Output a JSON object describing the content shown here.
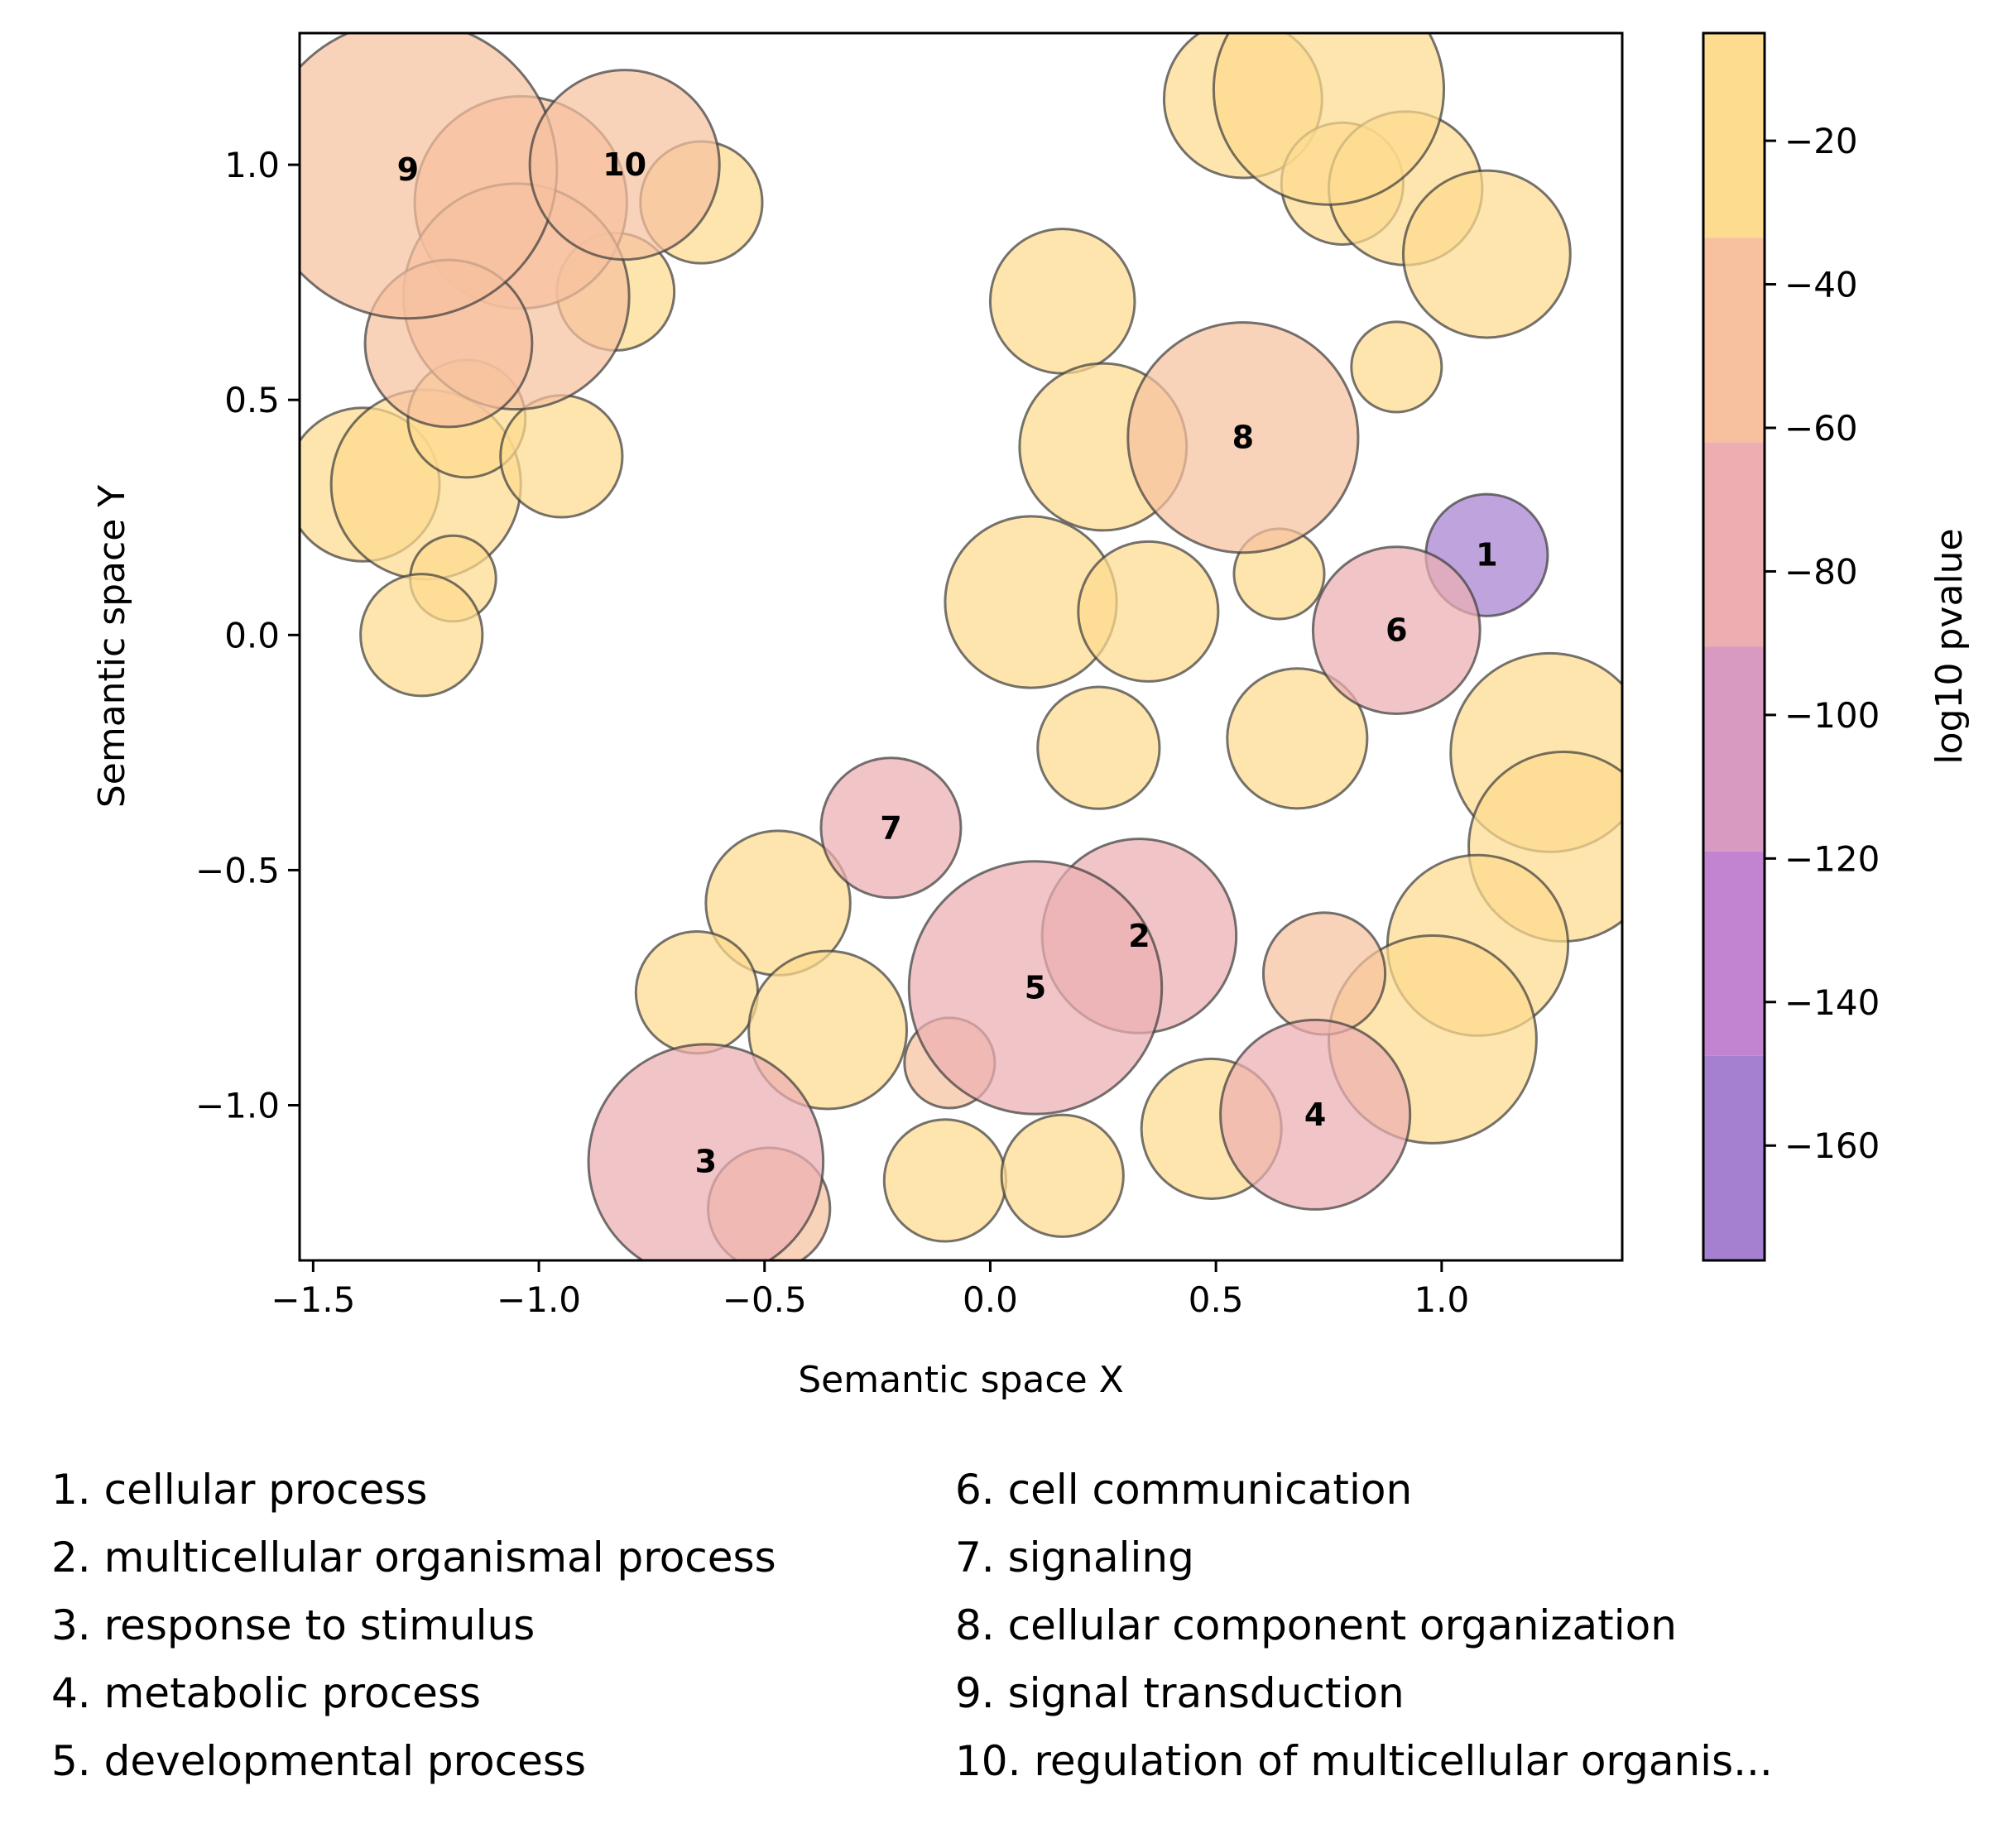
{
  "chart_data": {
    "type": "scatter",
    "xlabel": "Semantic space X",
    "ylabel": "Semantic space Y",
    "xlim": [
      -1.53,
      1.4
    ],
    "ylim": [
      -1.33,
      1.28
    ],
    "xticks": [
      {
        "value": -1.5,
        "label": "−1.5"
      },
      {
        "value": -1.0,
        "label": "−1.0"
      },
      {
        "value": -0.5,
        "label": "−0.5"
      },
      {
        "value": 0.0,
        "label": "0.0"
      },
      {
        "value": 0.5,
        "label": "0.5"
      },
      {
        "value": 1.0,
        "label": "1.0"
      }
    ],
    "yticks": [
      {
        "value": -1.0,
        "label": "−1.0"
      },
      {
        "value": -0.5,
        "label": "−0.5"
      },
      {
        "value": 0.0,
        "label": "0.0"
      },
      {
        "value": 0.5,
        "label": "0.5"
      },
      {
        "value": 1.0,
        "label": "1.0"
      }
    ],
    "colorbar": {
      "label": "log10 pvalue",
      "range": [
        -176,
        -5
      ],
      "bands": [
        {
          "from": -176,
          "to": -147.5,
          "color": "#a680d0"
        },
        {
          "from": -147.5,
          "to": -119,
          "color": "#c283d0"
        },
        {
          "from": -119,
          "to": -90.5,
          "color": "#d99ac2"
        },
        {
          "from": -90.5,
          "to": -62,
          "color": "#ecaeb1"
        },
        {
          "from": -62,
          "to": -33.5,
          "color": "#f7c1a0"
        },
        {
          "from": -33.5,
          "to": -5,
          "color": "#fddb8f"
        }
      ],
      "ticks": [
        {
          "value": -20,
          "label": "−20"
        },
        {
          "value": -40,
          "label": "−40"
        },
        {
          "value": -60,
          "label": "−60"
        },
        {
          "value": -80,
          "label": "−80"
        },
        {
          "value": -100,
          "label": "−100"
        },
        {
          "value": -120,
          "label": "−120"
        },
        {
          "value": -140,
          "label": "−140"
        },
        {
          "value": -160,
          "label": "−160"
        }
      ]
    },
    "points": [
      {
        "x": -1.39,
        "y": 0.32,
        "r": 0.17,
        "logp": -10
      },
      {
        "x": -1.25,
        "y": 0.32,
        "r": 0.21,
        "logp": -10
      },
      {
        "x": -1.16,
        "y": 0.46,
        "r": 0.13,
        "logp": -10
      },
      {
        "x": -0.95,
        "y": 0.38,
        "r": 0.135,
        "logp": -10
      },
      {
        "x": -1.19,
        "y": 0.12,
        "r": 0.095,
        "logp": -10
      },
      {
        "x": -1.26,
        "y": 0.0,
        "r": 0.135,
        "logp": -10
      },
      {
        "x": -0.83,
        "y": 0.73,
        "r": 0.13,
        "logp": -10
      },
      {
        "x": -0.64,
        "y": 0.92,
        "r": 0.135,
        "logp": -10
      },
      {
        "x": -1.04,
        "y": 0.92,
        "r": 0.235,
        "logp": -50
      },
      {
        "x": -1.05,
        "y": 0.72,
        "r": 0.25,
        "logp": -50
      },
      {
        "x": -1.2,
        "y": 0.62,
        "r": 0.185,
        "logp": -50
      },
      {
        "x": -1.29,
        "y": 0.99,
        "r": 0.33,
        "logp": -45,
        "label": "9"
      },
      {
        "x": -0.81,
        "y": 1.0,
        "r": 0.21,
        "logp": -50,
        "label": "10"
      },
      {
        "x": 0.16,
        "y": 0.71,
        "r": 0.16,
        "logp": -10
      },
      {
        "x": 0.25,
        "y": 0.4,
        "r": 0.185,
        "logp": -10
      },
      {
        "x": 0.09,
        "y": 0.07,
        "r": 0.19,
        "logp": -10
      },
      {
        "x": 0.35,
        "y": 0.05,
        "r": 0.155,
        "logp": -10
      },
      {
        "x": 0.24,
        "y": -0.24,
        "r": 0.135,
        "logp": -10
      },
      {
        "x": 0.64,
        "y": 0.13,
        "r": 0.1,
        "logp": -10
      },
      {
        "x": 0.68,
        "y": -0.22,
        "r": 0.155,
        "logp": -10
      },
      {
        "x": 0.9,
        "y": 0.57,
        "r": 0.1,
        "logp": -10
      },
      {
        "x": 0.56,
        "y": 1.14,
        "r": 0.175,
        "logp": -10
      },
      {
        "x": 0.78,
        "y": 0.96,
        "r": 0.135,
        "logp": -10
      },
      {
        "x": 0.92,
        "y": 0.95,
        "r": 0.17,
        "logp": -10
      },
      {
        "x": 1.1,
        "y": 0.81,
        "r": 0.185,
        "logp": -10
      },
      {
        "x": 0.75,
        "y": 1.16,
        "r": 0.255,
        "logp": -10
      },
      {
        "x": 0.56,
        "y": 0.42,
        "r": 0.255,
        "logp": -45,
        "label": "8"
      },
      {
        "x": 1.1,
        "y": 0.17,
        "r": 0.135,
        "logp": -170,
        "label": "1"
      },
      {
        "x": 0.9,
        "y": 0.01,
        "r": 0.185,
        "logp": -80,
        "label": "6"
      },
      {
        "x": 1.24,
        "y": -0.25,
        "r": 0.22,
        "logp": -10
      },
      {
        "x": 1.27,
        "y": -0.45,
        "r": 0.21,
        "logp": -10
      },
      {
        "x": 1.08,
        "y": -0.66,
        "r": 0.2,
        "logp": -10
      },
      {
        "x": 0.98,
        "y": -0.86,
        "r": 0.23,
        "logp": -10
      },
      {
        "x": 0.74,
        "y": -0.72,
        "r": 0.135,
        "logp": -50
      },
      {
        "x": 0.49,
        "y": -1.05,
        "r": 0.155,
        "logp": -10
      },
      {
        "x": 0.72,
        "y": -1.02,
        "r": 0.21,
        "logp": -80,
        "label": "4"
      },
      {
        "x": -0.47,
        "y": -0.57,
        "r": 0.16,
        "logp": -10
      },
      {
        "x": -0.65,
        "y": -0.76,
        "r": 0.135,
        "logp": -10
      },
      {
        "x": -0.36,
        "y": -0.84,
        "r": 0.175,
        "logp": -10
      },
      {
        "x": -0.09,
        "y": -0.91,
        "r": 0.1,
        "logp": -50
      },
      {
        "x": -0.1,
        "y": -1.16,
        "r": 0.135,
        "logp": -10
      },
      {
        "x": 0.16,
        "y": -1.15,
        "r": 0.135,
        "logp": -10
      },
      {
        "x": -0.22,
        "y": -0.41,
        "r": 0.155,
        "logp": -80,
        "label": "7"
      },
      {
        "x": 0.33,
        "y": -0.64,
        "r": 0.215,
        "logp": -80,
        "label": "2"
      },
      {
        "x": 0.1,
        "y": -0.75,
        "r": 0.28,
        "logp": -80,
        "label": "5"
      },
      {
        "x": -0.63,
        "y": -1.12,
        "r": 0.26,
        "logp": -80,
        "label": "3"
      },
      {
        "x": -0.49,
        "y": -1.22,
        "r": 0.135,
        "logp": -50
      }
    ]
  },
  "legend": {
    "items": [
      "1. cellular process",
      "2. multicellular organismal process",
      "3. response to stimulus",
      "4. metabolic process",
      "5. developmental process",
      "6. cell communication",
      "7. signaling",
      "8. cellular component organization",
      "9. signal transduction",
      "10. regulation of multicellular organis..."
    ]
  }
}
